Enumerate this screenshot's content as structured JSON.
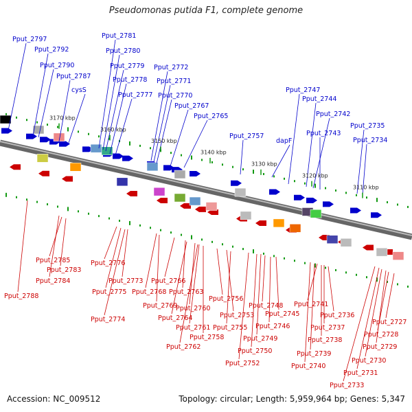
{
  "title": "Pseudomonas putida F1, complete genome",
  "footer": {
    "accession": "Accession: NC_009512",
    "summary": "Topology: circular; Length: 5,959,964 bp; Genes: 5,347"
  },
  "colors": {
    "forward": "#0000cc",
    "reverse": "#cc0000",
    "tick": "#119911",
    "backbone": "#888888"
  },
  "scale_labels": [
    "3170 kbp",
    "3160 kbp",
    "3150 kbp",
    "3140 kbp",
    "3130 kbp",
    "3120 kbp",
    "3110 kbp"
  ],
  "top_labels": [
    "Pput_2797",
    "Pput_2792",
    "Pput_2790",
    "Pput_2787",
    "cysS",
    "Pput_2781",
    "Pput_2780",
    "Pput_2779",
    "Pput_2778",
    "Pput_2777",
    "Pput_2772",
    "Pput_2771",
    "Pput_2770",
    "Pput_2767",
    "Pput_2765",
    "Pput_2757",
    "dapF",
    "Pput_2747",
    "Pput_2744",
    "Pput_2742",
    "Pput_2743",
    "Pput_2735",
    "Pput_2734"
  ],
  "bottom_labels": [
    "Pput_2785",
    "Pput_2783",
    "Pput_2784",
    "Pput_2788",
    "Pput_2776",
    "Pput_2775",
    "Pput_2773",
    "Pput_2774",
    "Pput_2768",
    "Pput_2769",
    "Pput_2766",
    "Pput_2763",
    "Pput_2764",
    "Pput_2760",
    "Pput_2761",
    "Pput_2758",
    "Pput_2762",
    "Pput_2756",
    "Pput_2753",
    "Pput_2755",
    "Pput_2748",
    "Pput_2745",
    "Pput_2746",
    "Pput_2749",
    "Pput_2750",
    "Pput_2752",
    "Pput_2741",
    "Pput_2736",
    "Pput_2737",
    "Pput_2738",
    "Pput_2739",
    "Pput_2740",
    "Pput_2727",
    "Pput_2728",
    "Pput_2729",
    "Pput_2730",
    "Pput_2731",
    "Pput_2733"
  ]
}
